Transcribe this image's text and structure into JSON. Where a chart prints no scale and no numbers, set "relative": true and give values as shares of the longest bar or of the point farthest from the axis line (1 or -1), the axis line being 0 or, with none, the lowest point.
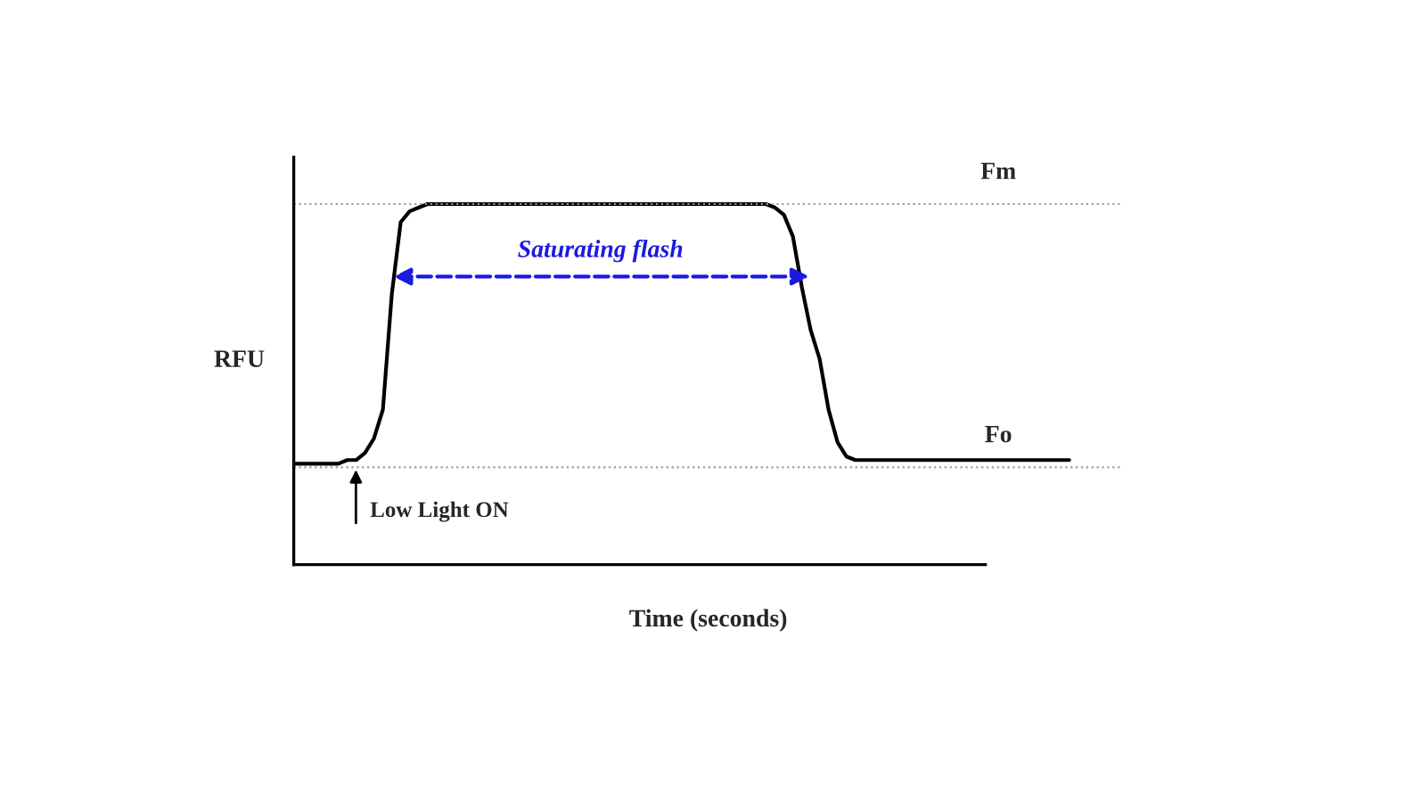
{
  "chart_data": {
    "type": "line",
    "relative": true,
    "xlabel": "Time (seconds)",
    "ylabel": "RFU",
    "categories": [
      null,
      null,
      null,
      null,
      null,
      null,
      null,
      null,
      null,
      null,
      null,
      null,
      null,
      null,
      null,
      null,
      null,
      null,
      null,
      null,
      null,
      null,
      null,
      null,
      null,
      null,
      null,
      null,
      null,
      null,
      null,
      null,
      null,
      null,
      null,
      null,
      null,
      null,
      null,
      null,
      null,
      null,
      null,
      null,
      null,
      null,
      null,
      null,
      null,
      null,
      null,
      null,
      null,
      null,
      null,
      null,
      null,
      null,
      null,
      null,
      null,
      null,
      null,
      null,
      null,
      null,
      null,
      null,
      null,
      null,
      null,
      null,
      null,
      null,
      null,
      null,
      null,
      null,
      null,
      null,
      null,
      null,
      null,
      null,
      null,
      null,
      null,
      null
    ],
    "series": [
      {
        "color": "#000000",
        "values": [
          0.28,
          0.28,
          0.28,
          0.28,
          0.28,
          0.28,
          0.29,
          0.29,
          0.31,
          0.35,
          0.43,
          0.75,
          0.95,
          0.98,
          0.99,
          1.0,
          1.0,
          1.0,
          1.0,
          1.0,
          1.0,
          1.0,
          1.0,
          1.0,
          1.0,
          1.0,
          1.0,
          1.0,
          1.0,
          1.0,
          1.0,
          1.0,
          1.0,
          1.0,
          1.0,
          1.0,
          1.0,
          1.0,
          1.0,
          1.0,
          1.0,
          1.0,
          1.0,
          1.0,
          1.0,
          1.0,
          1.0,
          1.0,
          1.0,
          1.0,
          1.0,
          1.0,
          1.0,
          1.0,
          0.99,
          0.97,
          0.91,
          0.77,
          0.65,
          0.57,
          0.43,
          0.34,
          0.3,
          0.29,
          0.29,
          0.29,
          0.29,
          0.29,
          0.29,
          0.29,
          0.29,
          0.29,
          0.29,
          0.29,
          0.29,
          0.29,
          0.29,
          0.29,
          0.29,
          0.29,
          0.29,
          0.29,
          0.29,
          0.29,
          0.29,
          0.29,
          0.29,
          0.29
        ]
      }
    ],
    "ref_lines": [
      {
        "axis": "y",
        "value": 1.0,
        "label": "Fm",
        "color": "#999999",
        "line_style": "dotted"
      },
      {
        "axis": "y",
        "value": 0.27,
        "label": "Fo",
        "color": "#999999",
        "line_style": "dotted"
      }
    ],
    "annotations": [
      "Saturating flash",
      "Low Light ON"
    ]
  }
}
